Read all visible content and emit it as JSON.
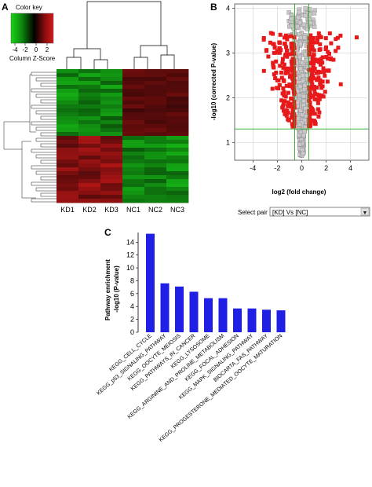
{
  "panels": {
    "a": "A",
    "b": "B",
    "c": "C"
  },
  "color_key": {
    "title": "Color key",
    "subtitle": "Column Z-Score",
    "ticks": [
      "-4",
      "-2",
      "0",
      "2"
    ],
    "colors": {
      "low": "#19d419",
      "mid": "#000000",
      "high": "#d41919"
    }
  },
  "select_pair": {
    "label": "Select pair",
    "value": "[KD] Vs [NC]",
    "arrow": "▼"
  },
  "chart_data": [
    {
      "type": "heatmap",
      "panel": "A",
      "columns": [
        "KD1",
        "KD2",
        "KD3",
        "NC1",
        "NC2",
        "NC3"
      ],
      "row_clusters": [
        {
          "name": "upper",
          "pattern": [
            "green",
            "green",
            "green",
            "red",
            "red",
            "red"
          ]
        },
        {
          "name": "lower",
          "pattern": [
            "red",
            "red",
            "red",
            "green",
            "green",
            "green"
          ]
        }
      ],
      "column_dendrogram": "KD and NC samples split into two main branches",
      "row_dendrogram": true
    },
    {
      "type": "scatter",
      "panel": "B",
      "xlabel": "log2 (fold change)",
      "ylabel": "-log10 (corrected P-value)",
      "xlim": [
        -5.5,
        5.5
      ],
      "ylim": [
        0.6,
        4.1
      ],
      "xticks": [
        -4,
        -2,
        0,
        2,
        4
      ],
      "yticks": [
        1,
        2,
        3,
        4
      ],
      "thresholds": {
        "fold_change_log2": [
          -0.58,
          0.58
        ],
        "neg_log10_p": 1.3
      },
      "grid": true,
      "colors": {
        "significant": "#e8191a",
        "not_significant": "#c8c8c8",
        "threshold": "#22aa22"
      }
    },
    {
      "type": "bar",
      "panel": "C",
      "ylabel": "Pathway enrichment\n-log10 (P-value)",
      "ylim": [
        0,
        15.5
      ],
      "yticks": [
        0,
        2,
        4,
        6,
        8,
        10,
        12,
        14
      ],
      "color": "#1f1fe6",
      "categories": [
        "KEGG_CELL_CYCLE",
        "KEGG_p53_SIGNALING_PATHWAY",
        "KEGG_OOCYTE_MEIOSIS",
        "KEGG_PATHWAYS_IN_CANCER",
        "KEGG_LYSOSOME",
        "KEGG_ARGININE_AND_PROLINE_METABOLISM",
        "KEGG_FOCAL_ADHESION",
        "KEGG_MAPK_SIGNALING_PATHWAY",
        "BIOCARTA_FAS_PATHWAY",
        "KEGG_PROGESTERONE_MEDIATED_OOCYTE_MATURATION"
      ],
      "values": [
        15.3,
        7.6,
        7.1,
        6.3,
        5.3,
        5.3,
        3.7,
        3.7,
        3.5,
        3.4
      ]
    }
  ]
}
